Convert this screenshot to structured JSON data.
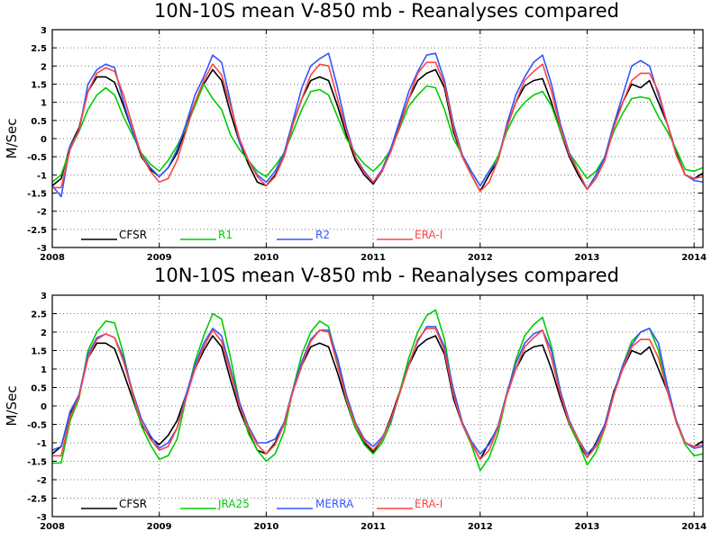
{
  "chart_data": [
    {
      "type": "line",
      "title": "10N-10S mean V-850 mb - Reanalyses compared",
      "ylabel": "M/Sec",
      "xlabel": "",
      "ylim": [
        -3,
        3
      ],
      "xlim": [
        2008,
        2014.083
      ],
      "y_ticks": [
        "-3",
        "-2.5",
        "-2",
        "-1.5",
        "-1",
        "-0.5",
        "0",
        "0.5",
        "1",
        "1.5",
        "2",
        "2.5",
        "3"
      ],
      "x_ticks": [
        "2008",
        "2009",
        "2010",
        "2011",
        "2012",
        "2013",
        "2014"
      ],
      "grid": true,
      "legend_position": "bottom-left",
      "x_start": 2008.0,
      "x_step_months": 1,
      "series": [
        {
          "name": "CFSR",
          "color": "#000000",
          "values": [
            -1.3,
            -1.1,
            -0.2,
            0.3,
            1.3,
            1.7,
            1.7,
            1.55,
            0.9,
            0.2,
            -0.5,
            -0.85,
            -1.05,
            -0.8,
            -0.4,
            0.3,
            1.0,
            1.5,
            1.9,
            1.6,
            0.7,
            -0.1,
            -0.7,
            -1.2,
            -1.3,
            -1.0,
            -0.5,
            0.4,
            1.1,
            1.6,
            1.7,
            1.6,
            0.9,
            0.1,
            -0.6,
            -1.0,
            -1.25,
            -0.9,
            -0.3,
            0.4,
            1.1,
            1.6,
            1.8,
            1.9,
            1.4,
            0.2,
            -0.5,
            -1.0,
            -1.45,
            -1.0,
            -0.6,
            0.3,
            1.0,
            1.45,
            1.6,
            1.65,
            1.0,
            0.2,
            -0.5,
            -1.0,
            -1.4,
            -1.0,
            -0.5,
            0.4,
            1.0,
            1.5,
            1.4,
            1.6,
            1.0,
            0.4,
            -0.4,
            -1.0,
            -1.1,
            -0.95
          ]
        },
        {
          "name": "R1",
          "color": "#00cc00",
          "values": [
            -1.2,
            -1.0,
            -0.3,
            0.2,
            0.8,
            1.2,
            1.4,
            1.2,
            0.6,
            0.1,
            -0.4,
            -0.7,
            -0.9,
            -0.6,
            -0.2,
            0.3,
            0.9,
            1.5,
            1.1,
            0.8,
            0.1,
            -0.3,
            -0.6,
            -0.9,
            -1.05,
            -0.75,
            -0.4,
            0.2,
            0.8,
            1.3,
            1.35,
            1.2,
            0.6,
            0.0,
            -0.4,
            -0.7,
            -0.9,
            -0.65,
            -0.3,
            0.3,
            0.9,
            1.2,
            1.45,
            1.4,
            0.8,
            0.0,
            -0.45,
            -0.9,
            -1.3,
            -0.9,
            -0.5,
            0.2,
            0.7,
            1.0,
            1.2,
            1.3,
            0.9,
            0.2,
            -0.4,
            -0.75,
            -1.1,
            -0.9,
            -0.5,
            0.2,
            0.7,
            1.1,
            1.15,
            1.1,
            0.6,
            0.2,
            -0.3,
            -0.85,
            -0.9,
            -0.8
          ]
        },
        {
          "name": "R2",
          "color": "#3355ff",
          "values": [
            -1.3,
            -1.6,
            -0.2,
            0.2,
            1.5,
            1.9,
            2.05,
            1.95,
            1.0,
            0.2,
            -0.45,
            -0.8,
            -1.05,
            -0.8,
            -0.3,
            0.4,
            1.2,
            1.7,
            2.3,
            2.1,
            1.0,
            -0.1,
            -0.6,
            -1.0,
            -1.2,
            -0.9,
            -0.4,
            0.5,
            1.4,
            2.0,
            2.2,
            2.35,
            1.4,
            0.3,
            -0.5,
            -0.9,
            -1.2,
            -0.85,
            -0.25,
            0.5,
            1.3,
            1.85,
            2.3,
            2.35,
            1.6,
            0.4,
            -0.45,
            -0.9,
            -1.3,
            -0.9,
            -0.6,
            0.4,
            1.2,
            1.7,
            2.1,
            2.3,
            1.5,
            0.4,
            -0.4,
            -0.9,
            -1.4,
            -1.0,
            -0.5,
            0.4,
            1.2,
            2.0,
            2.15,
            2.0,
            1.2,
            0.4,
            -0.45,
            -1.0,
            -1.15,
            -1.2
          ]
        },
        {
          "name": "ERA-I",
          "color": "#ff4444",
          "values": [
            -1.35,
            -1.35,
            -0.3,
            0.25,
            1.3,
            1.8,
            1.95,
            1.85,
            1.2,
            0.35,
            -0.45,
            -0.9,
            -1.2,
            -1.1,
            -0.6,
            0.2,
            1.0,
            1.6,
            2.05,
            1.75,
            0.9,
            0.0,
            -0.6,
            -1.05,
            -1.3,
            -1.05,
            -0.5,
            0.4,
            1.1,
            1.75,
            2.05,
            2.0,
            1.1,
            0.2,
            -0.5,
            -0.95,
            -1.2,
            -0.9,
            -0.35,
            0.35,
            1.1,
            1.8,
            2.1,
            2.1,
            1.5,
            0.3,
            -0.5,
            -1.0,
            -1.45,
            -1.2,
            -0.6,
            0.3,
            1.0,
            1.6,
            1.85,
            2.05,
            1.3,
            0.3,
            -0.45,
            -0.9,
            -1.4,
            -1.1,
            -0.6,
            0.3,
            1.0,
            1.6,
            1.8,
            1.8,
            1.3,
            0.4,
            -0.45,
            -1.0,
            -1.1,
            -1.05
          ]
        }
      ]
    },
    {
      "type": "line",
      "title": "10N-10S mean V-850 mb - Reanalyses compared",
      "ylabel": "M/Sec",
      "xlabel": "",
      "ylim": [
        -3,
        3
      ],
      "xlim": [
        2008,
        2014.083
      ],
      "y_ticks": [
        "-3",
        "-2.5",
        "-2",
        "-1.5",
        "-1",
        "-0.5",
        "0",
        "0.5",
        "1",
        "1.5",
        "2",
        "2.5",
        "3"
      ],
      "x_ticks": [
        "2008",
        "2009",
        "2010",
        "2011",
        "2012",
        "2013",
        "2014"
      ],
      "grid": true,
      "legend_position": "bottom-left",
      "x_start": 2008.0,
      "x_step_months": 1,
      "series": [
        {
          "name": "CFSR",
          "color": "#000000",
          "values": [
            -1.3,
            -1.1,
            -0.2,
            0.3,
            1.3,
            1.7,
            1.7,
            1.55,
            0.9,
            0.2,
            -0.5,
            -0.85,
            -1.05,
            -0.8,
            -0.4,
            0.3,
            1.0,
            1.5,
            1.9,
            1.6,
            0.7,
            -0.1,
            -0.7,
            -1.2,
            -1.3,
            -1.0,
            -0.5,
            0.4,
            1.1,
            1.6,
            1.7,
            1.6,
            0.9,
            0.1,
            -0.6,
            -1.0,
            -1.25,
            -0.9,
            -0.3,
            0.4,
            1.1,
            1.6,
            1.8,
            1.9,
            1.4,
            0.2,
            -0.5,
            -1.0,
            -1.45,
            -1.0,
            -0.6,
            0.3,
            1.0,
            1.45,
            1.6,
            1.65,
            1.0,
            0.2,
            -0.5,
            -1.0,
            -1.4,
            -1.0,
            -0.5,
            0.4,
            1.0,
            1.5,
            1.4,
            1.6,
            1.0,
            0.4,
            -0.4,
            -1.0,
            -1.1,
            -0.95
          ]
        },
        {
          "name": "JRA25",
          "color": "#00cc00",
          "values": [
            -1.55,
            -1.55,
            -0.4,
            0.2,
            1.5,
            2.0,
            2.3,
            2.25,
            1.4,
            0.3,
            -0.55,
            -1.05,
            -1.45,
            -1.35,
            -0.9,
            0.2,
            1.2,
            1.9,
            2.5,
            2.35,
            1.3,
            0.1,
            -0.75,
            -1.2,
            -1.5,
            -1.3,
            -0.7,
            0.45,
            1.4,
            2.0,
            2.3,
            2.15,
            1.2,
            0.15,
            -0.6,
            -1.05,
            -1.3,
            -1.0,
            -0.45,
            0.4,
            1.3,
            2.0,
            2.45,
            2.6,
            1.8,
            0.35,
            -0.5,
            -1.05,
            -1.75,
            -1.4,
            -0.75,
            0.3,
            1.25,
            1.9,
            2.2,
            2.4,
            1.6,
            0.4,
            -0.5,
            -1.0,
            -1.6,
            -1.25,
            -0.6,
            0.3,
            1.1,
            1.75,
            2.0,
            2.1,
            1.5,
            0.45,
            -0.45,
            -1.05,
            -1.35,
            -1.3
          ]
        },
        {
          "name": "MERRA",
          "color": "#3355ff",
          "values": [
            -1.2,
            -1.1,
            -0.15,
            0.3,
            1.4,
            1.85,
            1.95,
            1.85,
            1.3,
            0.4,
            -0.35,
            -0.8,
            -1.15,
            -1.0,
            -0.6,
            0.3,
            1.1,
            1.7,
            2.1,
            1.9,
            1.0,
            0.1,
            -0.55,
            -1.0,
            -1.0,
            -0.9,
            -0.45,
            0.45,
            1.2,
            1.8,
            2.05,
            2.05,
            1.3,
            0.3,
            -0.45,
            -0.9,
            -1.1,
            -0.85,
            -0.4,
            0.35,
            1.15,
            1.75,
            2.15,
            2.15,
            1.6,
            0.45,
            -0.45,
            -0.95,
            -1.3,
            -1.05,
            -0.55,
            0.35,
            1.15,
            1.7,
            1.95,
            2.05,
            1.5,
            0.4,
            -0.4,
            -0.9,
            -1.3,
            -1.05,
            -0.5,
            0.35,
            1.1,
            1.65,
            2.0,
            2.1,
            1.7,
            0.55,
            -0.4,
            -1.0,
            -1.15,
            -1.1
          ]
        },
        {
          "name": "ERA-I",
          "color": "#ff4444",
          "values": [
            -1.35,
            -1.35,
            -0.3,
            0.25,
            1.3,
            1.8,
            1.95,
            1.85,
            1.2,
            0.35,
            -0.45,
            -0.9,
            -1.2,
            -1.1,
            -0.6,
            0.2,
            1.0,
            1.6,
            2.05,
            1.75,
            0.9,
            0.0,
            -0.6,
            -1.05,
            -1.3,
            -1.05,
            -0.5,
            0.4,
            1.1,
            1.75,
            2.05,
            2.0,
            1.1,
            0.2,
            -0.5,
            -0.95,
            -1.2,
            -0.9,
            -0.35,
            0.35,
            1.1,
            1.8,
            2.1,
            2.1,
            1.5,
            0.3,
            -0.5,
            -1.0,
            -1.45,
            -1.2,
            -0.6,
            0.3,
            1.0,
            1.6,
            1.85,
            2.05,
            1.3,
            0.3,
            -0.45,
            -0.9,
            -1.4,
            -1.1,
            -0.6,
            0.3,
            1.0,
            1.6,
            1.8,
            1.8,
            1.3,
            0.4,
            -0.45,
            -1.0,
            -1.1,
            -1.05
          ]
        }
      ]
    }
  ]
}
